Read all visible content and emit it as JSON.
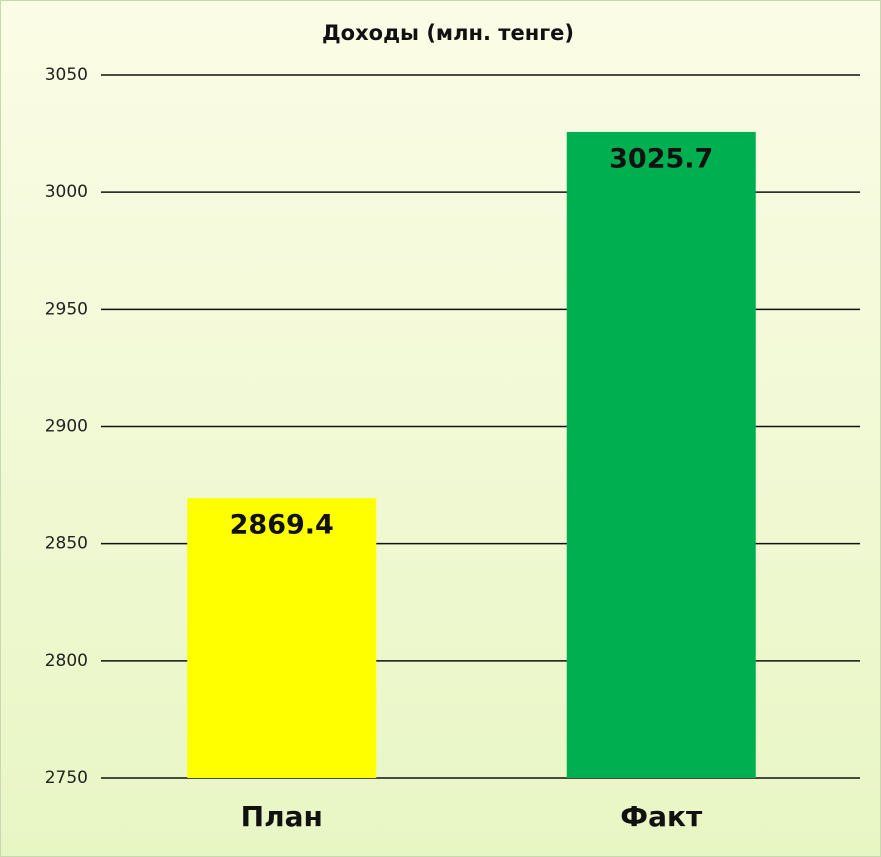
{
  "chart_data": {
    "type": "bar",
    "title": "Доходы (млн. тенге)",
    "categories": [
      "План",
      "Факт"
    ],
    "values": [
      2869.4,
      3025.7
    ],
    "colors": [
      "#ffff00",
      "#00b050"
    ],
    "ylim": [
      2750,
      3050
    ],
    "yticks": [
      2750,
      2800,
      2850,
      2900,
      2950,
      3000,
      3050
    ],
    "grid": true
  }
}
